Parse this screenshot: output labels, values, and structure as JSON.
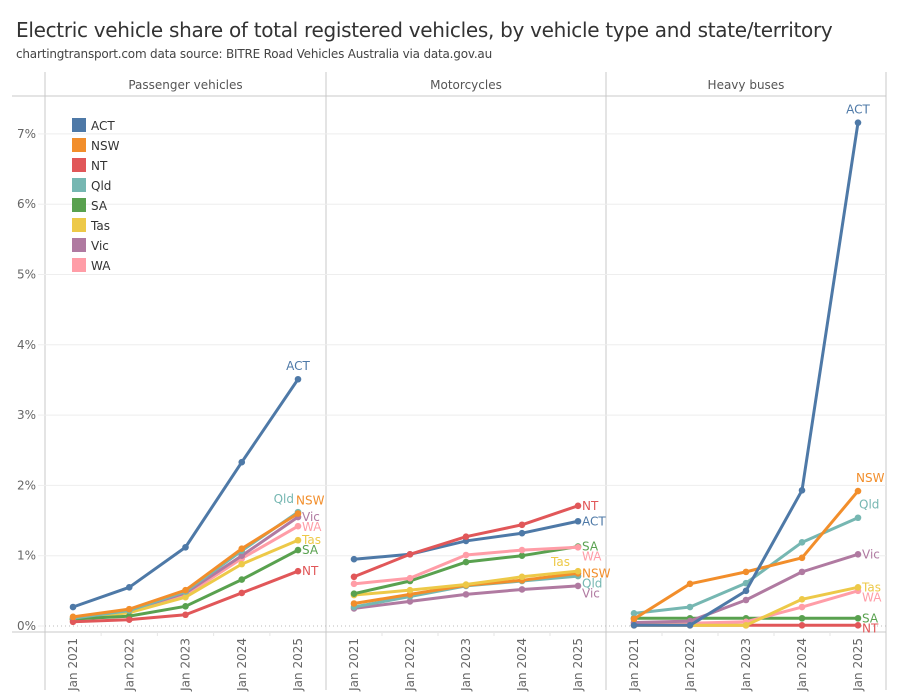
{
  "title": "Electric vehicle share of total registered vehicles, by vehicle type and state/territory",
  "subtitle": "chartingtransport.com  data source: BITRE Road Vehicles Australia via data.gov.au",
  "chart_data": {
    "type": "line",
    "title": "Electric vehicle share of total registered vehicles, by vehicle type and state/territory",
    "xlabel": "",
    "ylabel": "",
    "x": [
      "Jan 2021",
      "Jan 2022",
      "Jan 2023",
      "Jan 2024",
      "Jan 2025"
    ],
    "ylim": [
      0,
      7.3
    ],
    "yticks": [
      0,
      1,
      2,
      3,
      4,
      5,
      6,
      7
    ],
    "ytick_labels": [
      "0%",
      "1%",
      "2%",
      "3%",
      "4%",
      "5%",
      "6%",
      "7%"
    ],
    "grid": true,
    "legend": {
      "placement": "top-left",
      "entries": [
        "ACT",
        "NSW",
        "NT",
        "Qld",
        "SA",
        "Tas",
        "Vic",
        "WA"
      ]
    },
    "colors": {
      "ACT": "#4E79A7",
      "NSW": "#F28E2B",
      "NT": "#E15759",
      "Qld": "#76B7B2",
      "SA": "#59A14F",
      "Tas": "#EDC948",
      "Vic": "#B07AA1",
      "WA": "#FF9DA7"
    },
    "panels": [
      {
        "name": "Passenger vehicles",
        "series": [
          {
            "name": "WA",
            "values": [
              0.09,
              0.2,
              0.44,
              0.96,
              1.42
            ]
          },
          {
            "name": "Vic",
            "values": [
              0.1,
              0.22,
              0.47,
              1.0,
              1.55
            ]
          },
          {
            "name": "Tas",
            "values": [
              0.09,
              0.19,
              0.41,
              0.88,
              1.22
            ]
          },
          {
            "name": "SA",
            "values": [
              0.1,
              0.14,
              0.28,
              0.66,
              1.08
            ]
          },
          {
            "name": "Qld",
            "values": [
              0.11,
              0.22,
              0.49,
              1.07,
              1.62
            ]
          },
          {
            "name": "NT",
            "values": [
              0.06,
              0.09,
              0.16,
              0.47,
              0.78
            ]
          },
          {
            "name": "NSW",
            "values": [
              0.13,
              0.24,
              0.51,
              1.1,
              1.6
            ]
          },
          {
            "name": "ACT",
            "values": [
              0.27,
              0.55,
              1.12,
              2.33,
              3.51
            ]
          }
        ],
        "end_labels": [
          "ACT",
          "Qld",
          "NSW",
          "Vic",
          "WA",
          "Tas",
          "SA",
          "NT"
        ]
      },
      {
        "name": "Motorcycles",
        "series": [
          {
            "name": "Vic",
            "values": [
              0.25,
              0.35,
              0.45,
              0.52,
              0.57
            ]
          },
          {
            "name": "Qld",
            "values": [
              0.27,
              0.42,
              0.57,
              0.64,
              0.71
            ]
          },
          {
            "name": "NSW",
            "values": [
              0.32,
              0.45,
              0.58,
              0.65,
              0.75
            ]
          },
          {
            "name": "Tas",
            "values": [
              0.44,
              0.51,
              0.59,
              0.7,
              0.78
            ]
          },
          {
            "name": "SA",
            "values": [
              0.46,
              0.64,
              0.91,
              1.0,
              1.13
            ]
          },
          {
            "name": "WA",
            "values": [
              0.6,
              0.68,
              1.01,
              1.08,
              1.12
            ]
          },
          {
            "name": "ACT",
            "values": [
              0.95,
              1.02,
              1.21,
              1.32,
              1.49
            ]
          },
          {
            "name": "NT",
            "values": [
              0.7,
              1.02,
              1.27,
              1.44,
              1.71
            ]
          }
        ],
        "end_labels": [
          "NT",
          "ACT",
          "WA",
          "SA",
          "Tas",
          "NSW",
          "Qld",
          "Vic"
        ]
      },
      {
        "name": "Heavy buses",
        "series": [
          {
            "name": "NT",
            "values": [
              0.01,
              0.01,
              0.01,
              0.01,
              0.01
            ]
          },
          {
            "name": "SA",
            "values": [
              0.11,
              0.11,
              0.11,
              0.11,
              0.11
            ]
          },
          {
            "name": "WA",
            "values": [
              0.04,
              0.04,
              0.06,
              0.27,
              0.5
            ]
          },
          {
            "name": "Tas",
            "values": [
              0.01,
              0.01,
              0.01,
              0.38,
              0.55
            ]
          },
          {
            "name": "Vic",
            "values": [
              0.05,
              0.07,
              0.37,
              0.77,
              1.02
            ]
          },
          {
            "name": "Qld",
            "values": [
              0.18,
              0.27,
              0.61,
              1.19,
              1.54
            ]
          },
          {
            "name": "NSW",
            "values": [
              0.1,
              0.6,
              0.77,
              0.97,
              1.92
            ]
          },
          {
            "name": "ACT",
            "values": [
              0.01,
              0.01,
              0.5,
              1.93,
              7.16
            ]
          }
        ],
        "end_labels": [
          "ACT",
          "NSW",
          "Qld",
          "Vic",
          "Tas",
          "WA",
          "SA",
          "NT"
        ]
      }
    ]
  }
}
